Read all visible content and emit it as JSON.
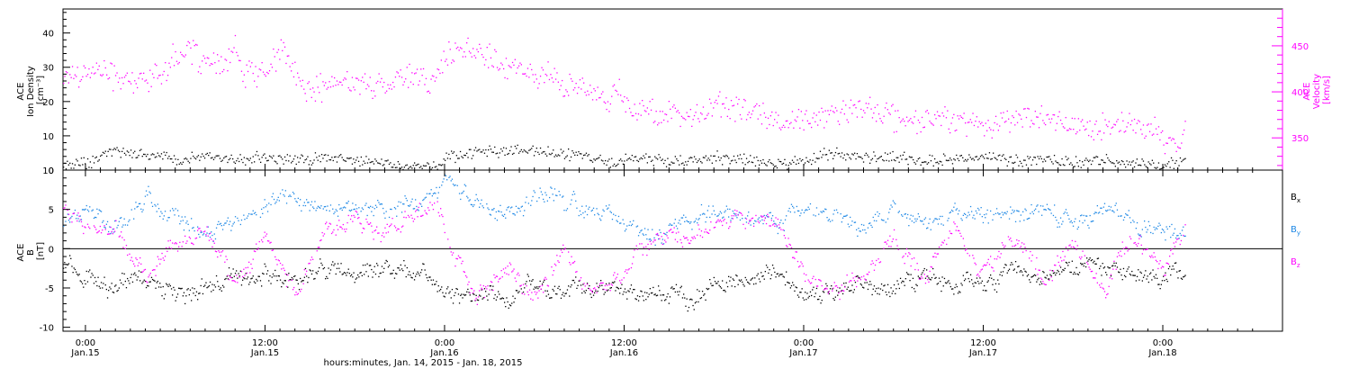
{
  "chart_data": [
    {
      "type": "scatter",
      "panel": "top",
      "y_left_label": [
        "ACE",
        "Ion Density",
        "[cm⁻³]"
      ],
      "y_right_label": [
        "ACE",
        "Velocity",
        "[km/s]"
      ],
      "ylim_left": [
        0,
        47
      ],
      "yticks_left": [
        0,
        10,
        20,
        30,
        40
      ],
      "ylim_right": [
        315,
        490
      ],
      "yticks_right": [
        350,
        400,
        450
      ],
      "series": [
        {
          "name": "Velocity",
          "axis": "right",
          "color": "#ff00ff",
          "x_hours": [
            -1.5,
            1,
            3,
            5,
            6,
            7,
            8,
            9,
            10,
            10.5,
            11,
            12,
            13,
            13.5,
            14,
            15,
            16,
            17,
            18,
            19,
            20,
            21,
            22,
            23,
            23.5,
            24,
            25,
            26,
            27,
            28,
            29,
            30,
            31,
            32,
            33,
            34,
            35,
            35.5,
            36,
            37,
            38,
            39,
            40,
            41,
            41.5,
            42,
            43,
            44,
            45,
            46,
            46.5,
            47,
            48,
            49,
            50,
            51,
            52,
            53,
            53.5,
            54,
            55,
            56,
            57,
            58,
            59,
            60,
            61,
            62,
            63,
            64,
            65,
            66,
            67,
            68,
            69,
            70,
            71,
            71.5,
            72,
            73,
            73.5
          ],
          "values": [
            418,
            425,
            410,
            420,
            440,
            445,
            432,
            425,
            448,
            415,
            425,
            420,
            445,
            440,
            415,
            400,
            408,
            410,
            412,
            405,
            410,
            418,
            415,
            410,
            420,
            440,
            442,
            445,
            440,
            430,
            425,
            418,
            420,
            405,
            405,
            402,
            392,
            410,
            385,
            380,
            378,
            375,
            373,
            375,
            380,
            388,
            385,
            380,
            375,
            372,
            370,
            368,
            372,
            372,
            375,
            378,
            382,
            380,
            378,
            372,
            370,
            368,
            372,
            370,
            368,
            365,
            367,
            372,
            375,
            372,
            368,
            365,
            362,
            363,
            362,
            362,
            360,
            358,
            350,
            342,
            356
          ]
        },
        {
          "name": "Ion Density",
          "axis": "left",
          "color": "#000000",
          "x_hours": [
            -1.5,
            0,
            1,
            2,
            3,
            4,
            5,
            6,
            8,
            10,
            12,
            14,
            16,
            18,
            20,
            22,
            23.5,
            24,
            26,
            28,
            30,
            32,
            34,
            35.5,
            36,
            38,
            40,
            42,
            44,
            46,
            48,
            50,
            52,
            54,
            56,
            58,
            60,
            62,
            64,
            66,
            68,
            70,
            72,
            73,
            73.5
          ],
          "values": [
            2,
            2,
            4,
            6,
            5,
            4,
            5,
            3,
            4,
            3,
            4,
            3,
            4,
            3,
            2,
            1,
            1,
            4,
            5,
            6,
            6,
            5,
            4,
            2,
            4,
            3,
            3,
            4,
            3,
            2,
            3,
            5,
            4,
            4,
            3,
            3,
            4,
            3,
            3,
            2,
            3,
            2,
            2,
            2,
            3
          ]
        }
      ]
    },
    {
      "type": "scatter",
      "panel": "bottom",
      "y_label": [
        "ACE",
        "B",
        "[nT]"
      ],
      "ylim": [
        -10.5,
        10
      ],
      "yticks": [
        -10,
        -5,
        0,
        5,
        10
      ],
      "zero_line": true,
      "legend_position": "right",
      "series": [
        {
          "name": "Bx",
          "color": "#000000",
          "x_hours": [
            -1.5,
            0,
            2,
            4,
            6,
            8,
            10,
            12,
            14,
            16,
            18,
            20,
            22,
            23.5,
            24,
            26,
            28,
            30,
            32,
            34,
            36,
            38,
            40,
            42,
            44,
            46,
            48,
            50,
            52,
            54,
            56,
            58,
            60,
            62,
            64,
            66,
            68,
            70,
            72,
            73.5
          ],
          "values": [
            -2,
            -4,
            -5,
            -3,
            -6,
            -5,
            -4,
            -3,
            -4,
            -3,
            -3,
            -2,
            -3,
            -4,
            -6,
            -5,
            -6,
            -4,
            -5,
            -5,
            -5,
            -6,
            -6,
            -5,
            -4,
            -3,
            -5,
            -5,
            -4,
            -5,
            -3,
            -4,
            -4,
            -3,
            -4,
            -3,
            -2,
            -3,
            -4,
            -3
          ]
        },
        {
          "name": "By",
          "color": "#1e88e5",
          "x_hours": [
            -1.5,
            0,
            2,
            4,
            6,
            8,
            10,
            12,
            14,
            16,
            18,
            20,
            22,
            23.5,
            24,
            25,
            26,
            28,
            30,
            32,
            34,
            36,
            38,
            40,
            42,
            44,
            46,
            48,
            50,
            52,
            54,
            56,
            58,
            60,
            62,
            64,
            66,
            68,
            70,
            72,
            73.5
          ],
          "values": [
            3,
            5,
            4,
            6,
            5,
            2,
            4,
            5,
            6,
            5,
            4,
            5,
            6,
            7,
            9,
            8,
            6,
            4,
            7,
            6,
            5,
            3,
            1,
            4,
            5,
            4,
            3,
            5,
            4,
            3,
            5,
            4,
            5,
            4,
            5,
            5,
            4,
            5,
            4,
            3,
            2
          ]
        },
        {
          "name": "Bz",
          "color": "#ff00ff",
          "x_hours": [
            -1.5,
            0,
            2,
            4,
            6,
            8,
            10,
            12,
            14,
            16,
            18,
            20,
            22,
            23.5,
            24,
            26,
            28,
            30,
            32,
            34,
            36,
            38,
            40,
            42,
            44,
            46,
            48,
            50,
            52,
            54,
            56,
            58,
            60,
            62,
            64,
            66,
            68,
            70,
            72,
            73.5
          ],
          "values": [
            5,
            2,
            3,
            -4,
            1,
            3,
            -5,
            2,
            -6,
            3,
            4,
            2,
            5,
            6,
            2,
            -7,
            -2,
            -6,
            0,
            -5,
            -4,
            2,
            1,
            3,
            4,
            2,
            -4,
            -5,
            -3,
            2,
            -4,
            3,
            -3,
            2,
            -4,
            1,
            -4,
            2,
            -3,
            3
          ]
        }
      ],
      "legend": [
        {
          "label": "B",
          "sub": "x",
          "color": "#000000"
        },
        {
          "label": "B",
          "sub": "y",
          "color": "#1e88e5"
        },
        {
          "label": "B",
          "sub": "z",
          "color": "#ff00ff"
        }
      ]
    }
  ],
  "x_axis": {
    "xlim_hours": [
      -1.5,
      80
    ],
    "ticks": [
      {
        "hours": 0,
        "time": "0:00",
        "day": "Jan.15"
      },
      {
        "hours": 12,
        "time": "12:00",
        "day": "Jan.15"
      },
      {
        "hours": 24,
        "time": "0:00",
        "day": "Jan.16"
      },
      {
        "hours": 36,
        "time": "12:00",
        "day": "Jan.16"
      },
      {
        "hours": 48,
        "time": "0:00",
        "day": "Jan.17"
      },
      {
        "hours": 60,
        "time": "12:00",
        "day": "Jan.17"
      },
      {
        "hours": 72,
        "time": "0:00",
        "day": "Jan.18"
      }
    ],
    "title": "hours:minutes, Jan. 14, 2015 - Jan. 18, 2015"
  }
}
